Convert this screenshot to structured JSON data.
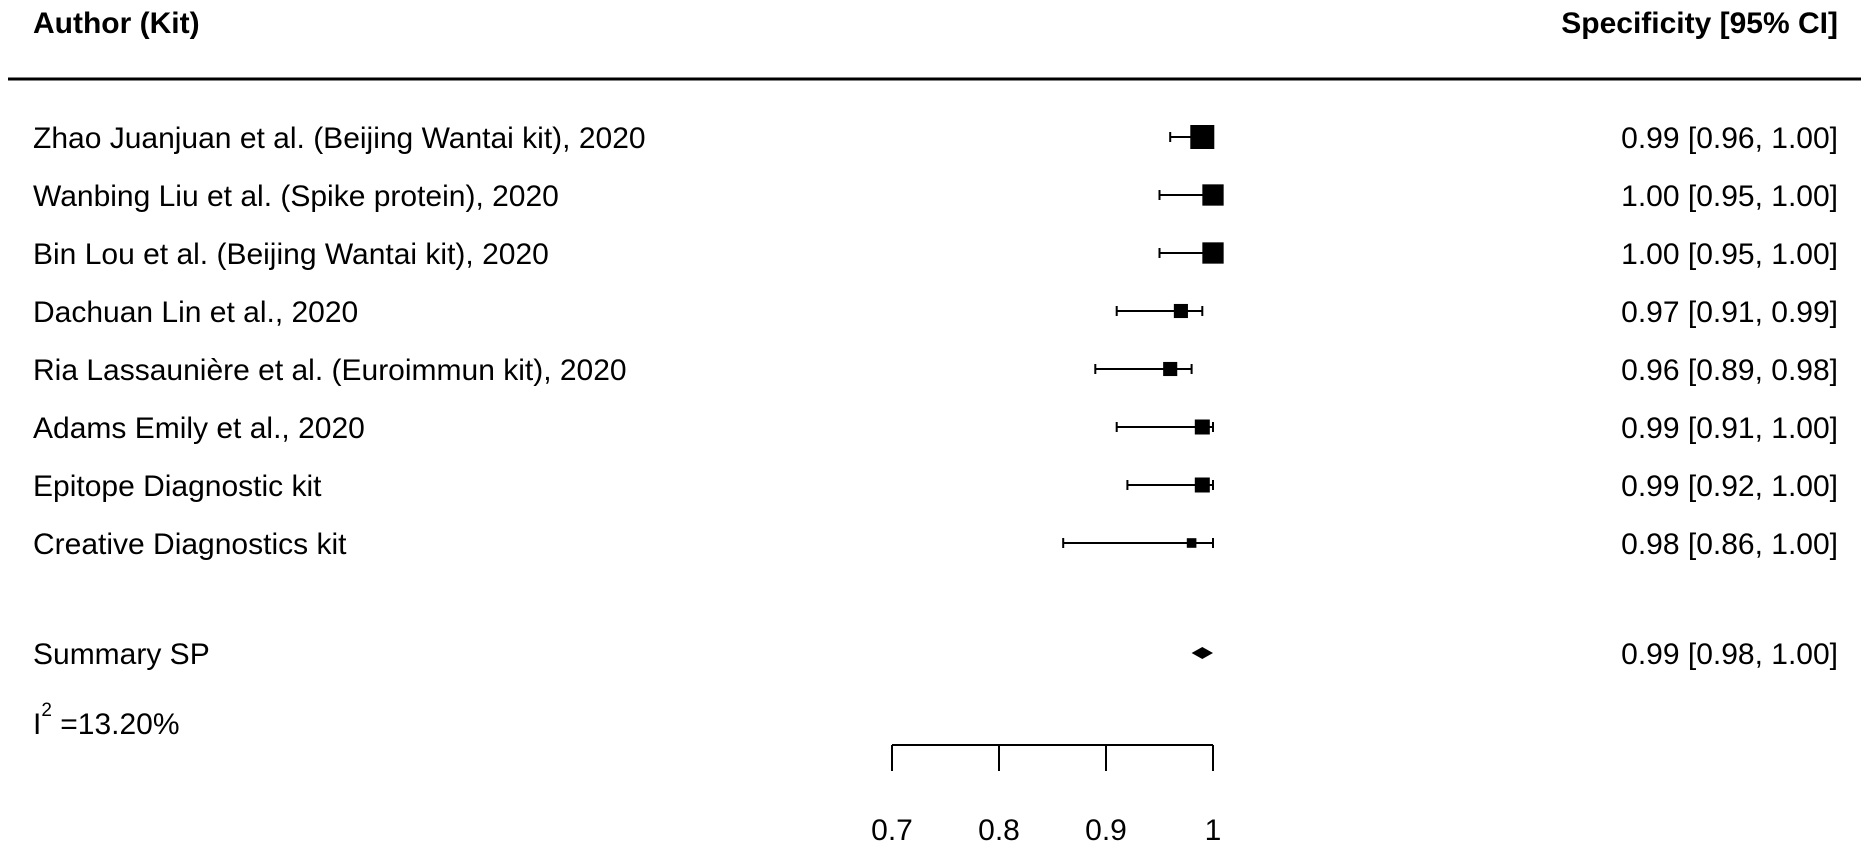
{
  "chart_data": {
    "type": "forest",
    "header": {
      "left": "Author (Kit)",
      "right": "Specificity [95% CI]"
    },
    "studies": [
      {
        "label": "Zhao Juanjuan et al. (Beijing Wantai kit), 2020",
        "estimate": 0.99,
        "lower": 0.96,
        "upper": 1.0,
        "ci_text": "0.99 [0.96, 1.00]",
        "weight": 1.0
      },
      {
        "label": "Wanbing Liu et al. (Spike protein), 2020",
        "estimate": 1.0,
        "lower": 0.95,
        "upper": 1.0,
        "ci_text": "1.00 [0.95, 1.00]",
        "weight": 0.85
      },
      {
        "label": "Bin Lou et al. (Beijing Wantai kit), 2020",
        "estimate": 1.0,
        "lower": 0.95,
        "upper": 1.0,
        "ci_text": "1.00 [0.95, 1.00]",
        "weight": 0.85
      },
      {
        "label": "Dachuan Lin et al., 2020",
        "estimate": 0.97,
        "lower": 0.91,
        "upper": 0.99,
        "ci_text": "0.97 [0.91, 0.99]",
        "weight": 0.45
      },
      {
        "label": "Ria Lassaunière et al. (Euroimmun kit), 2020",
        "estimate": 0.96,
        "lower": 0.89,
        "upper": 0.98,
        "ci_text": "0.96 [0.89, 0.98]",
        "weight": 0.45
      },
      {
        "label": "Adams Emily et al., 2020",
        "estimate": 0.99,
        "lower": 0.91,
        "upper": 1.0,
        "ci_text": "0.99 [0.91, 1.00]",
        "weight": 0.5
      },
      {
        "label": "Epitope Diagnostic kit",
        "estimate": 0.99,
        "lower": 0.92,
        "upper": 1.0,
        "ci_text": "0.99 [0.92, 1.00]",
        "weight": 0.5
      },
      {
        "label": "Creative Diagnostics kit",
        "estimate": 0.98,
        "lower": 0.86,
        "upper": 1.0,
        "ci_text": "0.98 [0.86, 1.00]",
        "weight": 0.2
      }
    ],
    "summary": {
      "label": "Summary SP",
      "estimate": 0.99,
      "lower": 0.98,
      "upper": 1.0,
      "ci_text": "0.99 [0.98, 1.00]"
    },
    "heterogeneity": {
      "base": "I",
      "sup": "2",
      "text": " =13.20%"
    },
    "x_axis": {
      "ticks": [
        0.7,
        0.8,
        0.9,
        1
      ],
      "tick_labels": [
        "0.7",
        "0.8",
        "0.9",
        "1"
      ],
      "range": [
        0.7,
        1.0
      ]
    }
  }
}
